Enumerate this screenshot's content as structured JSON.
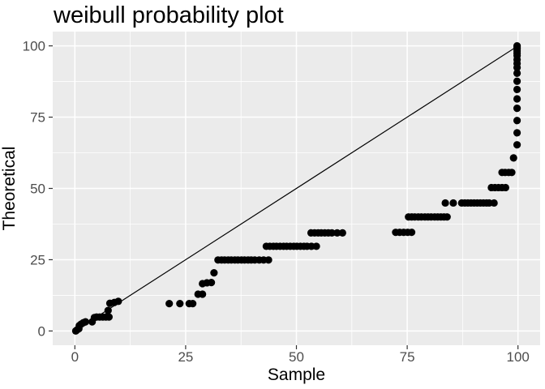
{
  "title": "weibull probability plot",
  "style": {
    "panel_bg": "#EBEBEB",
    "grid_color": "#FFFFFF",
    "point_color": "#000000",
    "ref_line_color": "#000000",
    "tick_label_color": "#4D4D4D",
    "axis_title_color": "#000000",
    "title_color": "#000000",
    "tick_mark_color": "#333333"
  },
  "chart_data": {
    "type": "scatter",
    "title": "weibull probability plot",
    "xlabel": "Sample",
    "ylabel": "Theoretical",
    "xlim": [
      -5,
      105
    ],
    "ylim": [
      -5,
      105
    ],
    "x_ticks": [
      0,
      25,
      50,
      75,
      100
    ],
    "y_ticks": [
      0,
      25,
      50,
      75,
      100
    ],
    "x_minor_ticks": [
      12.5,
      37.5,
      62.5,
      87.5
    ],
    "y_minor_ticks": [
      12.5,
      37.5,
      62.5,
      87.5
    ],
    "grid": true,
    "legend_position": "none",
    "reference_line": {
      "from": [
        0,
        0
      ],
      "to": [
        100,
        100
      ]
    },
    "points": [
      [
        0.2,
        0
      ],
      [
        0.5,
        0.4
      ],
      [
        0.9,
        0.8
      ],
      [
        1.0,
        1.9
      ],
      [
        1.4,
        2.4
      ],
      [
        1.9,
        2.9
      ],
      [
        2.4,
        3.2
      ],
      [
        3.9,
        3.2
      ],
      [
        4.4,
        4.7
      ],
      [
        4.9,
        4.9
      ],
      [
        5.6,
        4.9
      ],
      [
        6.3,
        4.9
      ],
      [
        7.0,
        4.9
      ],
      [
        7.7,
        4.9
      ],
      [
        7.5,
        7.2
      ],
      [
        7.9,
        9.7
      ],
      [
        8.9,
        10.0
      ],
      [
        9.8,
        10.4
      ],
      [
        21.3,
        9.6
      ],
      [
        23.7,
        9.6
      ],
      [
        25.8,
        9.6
      ],
      [
        26.6,
        9.6
      ],
      [
        27.8,
        12.9
      ],
      [
        28.8,
        12.9
      ],
      [
        28.8,
        16.6
      ],
      [
        29.8,
        16.9
      ],
      [
        30.8,
        17.0
      ],
      [
        31.4,
        20.4
      ],
      [
        32.3,
        24.9
      ],
      [
        33.1,
        24.9
      ],
      [
        33.8,
        24.9
      ],
      [
        34.6,
        24.9
      ],
      [
        35.3,
        24.9
      ],
      [
        36.1,
        24.9
      ],
      [
        36.8,
        24.9
      ],
      [
        37.6,
        24.9
      ],
      [
        38.3,
        24.9
      ],
      [
        39.1,
        24.9
      ],
      [
        39.8,
        24.9
      ],
      [
        40.6,
        24.9
      ],
      [
        41.6,
        24.9
      ],
      [
        42.6,
        24.9
      ],
      [
        43.7,
        24.9
      ],
      [
        43.2,
        29.7
      ],
      [
        44.0,
        29.7
      ],
      [
        44.8,
        29.7
      ],
      [
        45.5,
        29.7
      ],
      [
        46.3,
        29.7
      ],
      [
        47.1,
        29.7
      ],
      [
        47.8,
        29.7
      ],
      [
        48.6,
        29.7
      ],
      [
        49.4,
        29.7
      ],
      [
        50.1,
        29.7
      ],
      [
        50.9,
        29.7
      ],
      [
        51.7,
        29.7
      ],
      [
        52.4,
        29.7
      ],
      [
        53.4,
        29.7
      ],
      [
        54.5,
        29.7
      ],
      [
        53.3,
        34.4
      ],
      [
        54.1,
        34.4
      ],
      [
        54.9,
        34.4
      ],
      [
        55.6,
        34.4
      ],
      [
        56.4,
        34.4
      ],
      [
        57.2,
        34.4
      ],
      [
        58.0,
        34.4
      ],
      [
        59.2,
        34.4
      ],
      [
        60.4,
        34.4
      ],
      [
        72.4,
        34.6
      ],
      [
        73.3,
        34.6
      ],
      [
        74.2,
        34.6
      ],
      [
        75.1,
        34.6
      ],
      [
        76.0,
        34.6
      ],
      [
        75.3,
        40
      ],
      [
        76.0,
        40
      ],
      [
        76.7,
        40
      ],
      [
        77.5,
        40
      ],
      [
        78.2,
        40
      ],
      [
        79.0,
        40
      ],
      [
        79.7,
        40
      ],
      [
        80.4,
        40
      ],
      [
        81.2,
        40
      ],
      [
        81.9,
        40
      ],
      [
        82.6,
        40
      ],
      [
        83.3,
        40
      ],
      [
        84.0,
        40
      ],
      [
        83.6,
        44.9
      ],
      [
        85.4,
        44.9
      ],
      [
        87.3,
        44.9
      ],
      [
        88.0,
        44.9
      ],
      [
        88.7,
        44.9
      ],
      [
        89.4,
        44.9
      ],
      [
        90.1,
        44.9
      ],
      [
        90.8,
        44.9
      ],
      [
        91.5,
        44.9
      ],
      [
        92.2,
        44.9
      ],
      [
        92.9,
        44.9
      ],
      [
        93.5,
        44.9
      ],
      [
        94.6,
        44.9
      ],
      [
        94.0,
        50.3
      ],
      [
        94.8,
        50.3
      ],
      [
        95.6,
        50.3
      ],
      [
        96.4,
        50.3
      ],
      [
        97.2,
        50.3
      ],
      [
        96.4,
        55.6
      ],
      [
        97.1,
        55.6
      ],
      [
        97.9,
        55.6
      ],
      [
        98.6,
        55.6
      ],
      [
        99.0,
        60.7
      ],
      [
        99.8,
        65.3
      ],
      [
        99.8,
        69.5
      ],
      [
        99.8,
        73.8
      ],
      [
        99.8,
        78.1
      ],
      [
        99.8,
        81.4
      ],
      [
        99.8,
        84.7
      ],
      [
        99.8,
        87.6
      ],
      [
        99.8,
        90.4
      ],
      [
        99.8,
        92.4
      ],
      [
        99.8,
        93.8
      ],
      [
        99.8,
        95.2
      ],
      [
        99.8,
        96.6
      ],
      [
        99.8,
        97.4
      ],
      [
        99.8,
        98.2
      ],
      [
        99.8,
        99.0
      ],
      [
        99.8,
        99.6
      ],
      [
        99.8,
        100
      ]
    ]
  }
}
